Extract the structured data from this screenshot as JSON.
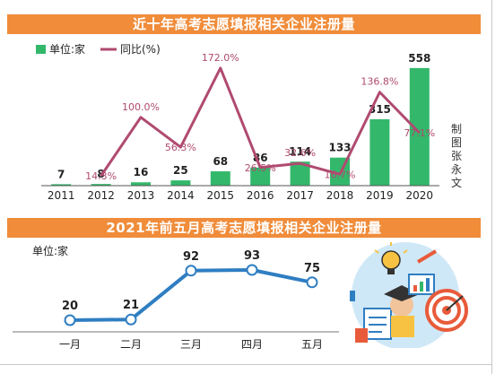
{
  "colors": {
    "banner": "#f08c3a",
    "bar": "#33b86b",
    "ratio_line": "#b04a70",
    "line2": "#2f7ec2"
  },
  "chart_data": [
    {
      "type": "bar",
      "title": "近十年高考志愿填报相关企业注册量",
      "legend": [
        {
          "label": "单位:家",
          "marker": "bar"
        },
        {
          "label": "同比(%)",
          "marker": "line"
        }
      ],
      "legend_position": "top-left",
      "categories": [
        "2011",
        "2012",
        "2013",
        "2014",
        "2015",
        "2016",
        "2017",
        "2018",
        "2019",
        "2020"
      ],
      "series": [
        {
          "name": "单位:家",
          "type": "bar",
          "values": [
            7,
            8,
            16,
            25,
            68,
            86,
            114,
            133,
            315,
            558
          ]
        },
        {
          "name": "同比(%)",
          "type": "line",
          "x": [
            "2012",
            "2013",
            "2014",
            "2015",
            "2016",
            "2017",
            "2018",
            "2019",
            "2020"
          ],
          "values": [
            14.3,
            100.0,
            56.3,
            172.0,
            26.5,
            32.6,
            16.7,
            136.8,
            77.1
          ],
          "labels": [
            "14.3%",
            "100.0%",
            "56.3%",
            "172.0%",
            "26.5%",
            "32.6%",
            "16.7%",
            "136.8%",
            "77.1%"
          ]
        }
      ],
      "bar_labels": [
        "7",
        "8",
        "16",
        "25",
        "68",
        "86",
        "114",
        "133",
        "315",
        "558"
      ],
      "ylim": [
        0,
        600
      ],
      "y2lim": [
        0,
        185
      ],
      "grid": false,
      "credit": "制图张永文"
    },
    {
      "type": "line",
      "title": "2021年前五月高考志愿填报相关企业注册量",
      "unit_label": "单位:家",
      "categories": [
        "一月",
        "二月",
        "三月",
        "四月",
        "五月"
      ],
      "series": [
        {
          "name": "",
          "values": [
            20,
            21,
            92,
            93,
            75
          ],
          "labels": [
            "20",
            "21",
            "92",
            "93",
            "75"
          ]
        }
      ],
      "ylim": [
        0,
        100
      ],
      "grid": false
    }
  ]
}
